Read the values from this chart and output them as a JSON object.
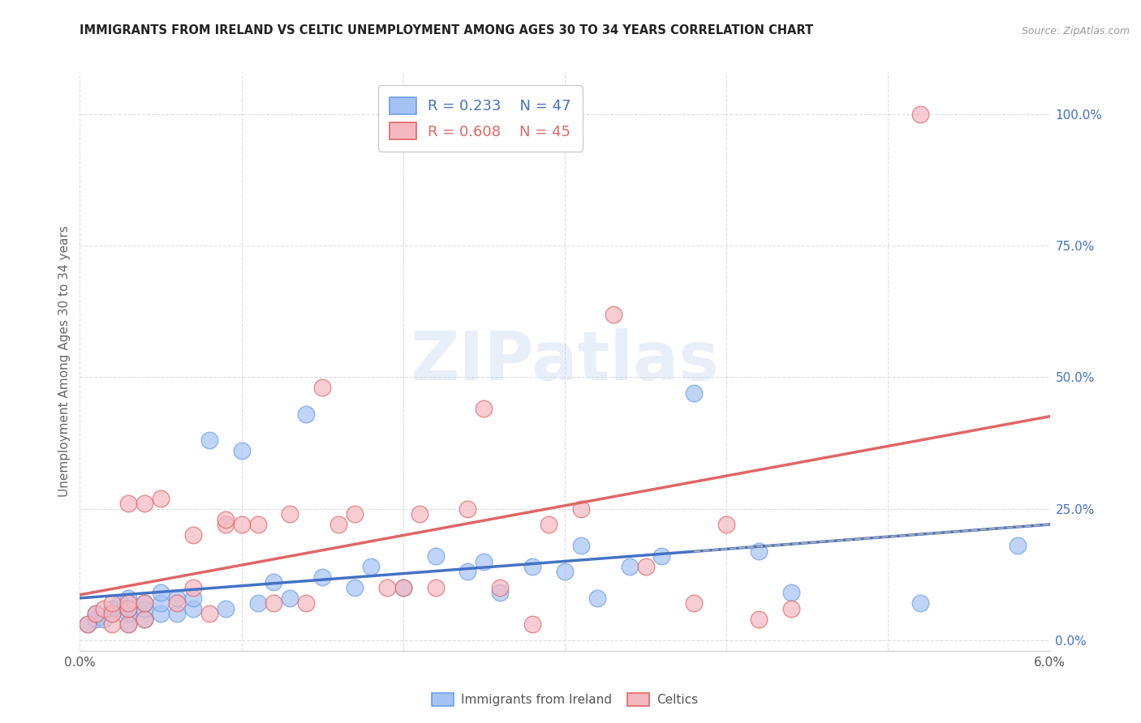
{
  "title": "IMMIGRANTS FROM IRELAND VS CELTIC UNEMPLOYMENT AMONG AGES 30 TO 34 YEARS CORRELATION CHART",
  "source": "Source: ZipAtlas.com",
  "ylabel": "Unemployment Among Ages 30 to 34 years",
  "ylabel_right_ticks": [
    "0.0%",
    "25.0%",
    "50.0%",
    "75.0%",
    "100.0%"
  ],
  "ylabel_right_vals": [
    0.0,
    0.25,
    0.5,
    0.75,
    1.0
  ],
  "x_min": 0.0,
  "x_max": 0.06,
  "y_min": -0.02,
  "y_max": 1.08,
  "ireland_R": 0.233,
  "ireland_N": 47,
  "celtics_R": 0.608,
  "celtics_N": 45,
  "ireland_color": "#a4c2f4",
  "celtics_color": "#f4b8c1",
  "ireland_edge_color": "#6d9eeb",
  "celtics_edge_color": "#e06666",
  "ireland_line_color": "#4472c4",
  "celtics_line_color": "#e06666",
  "grid_color": "#dddddd",
  "watermark": "ZIPatlas",
  "watermark_color": "#c8d8ee",
  "legend_label_ireland": "Immigrants from Ireland",
  "legend_label_celtics": "Celtics",
  "ireland_x": [
    0.0005,
    0.001,
    0.001,
    0.0015,
    0.002,
    0.002,
    0.0025,
    0.003,
    0.003,
    0.003,
    0.003,
    0.004,
    0.004,
    0.004,
    0.005,
    0.005,
    0.005,
    0.006,
    0.006,
    0.007,
    0.007,
    0.008,
    0.009,
    0.01,
    0.011,
    0.012,
    0.013,
    0.014,
    0.015,
    0.017,
    0.018,
    0.02,
    0.022,
    0.024,
    0.025,
    0.026,
    0.028,
    0.03,
    0.031,
    0.032,
    0.034,
    0.036,
    0.038,
    0.042,
    0.044,
    0.052,
    0.058
  ],
  "ireland_y": [
    0.03,
    0.04,
    0.05,
    0.04,
    0.05,
    0.06,
    0.07,
    0.03,
    0.05,
    0.06,
    0.08,
    0.04,
    0.06,
    0.07,
    0.05,
    0.07,
    0.09,
    0.05,
    0.08,
    0.06,
    0.08,
    0.38,
    0.06,
    0.36,
    0.07,
    0.11,
    0.08,
    0.43,
    0.12,
    0.1,
    0.14,
    0.1,
    0.16,
    0.13,
    0.15,
    0.09,
    0.14,
    0.13,
    0.18,
    0.08,
    0.14,
    0.16,
    0.47,
    0.17,
    0.09,
    0.07,
    0.18
  ],
  "celtics_x": [
    0.0005,
    0.001,
    0.0015,
    0.002,
    0.002,
    0.002,
    0.003,
    0.003,
    0.003,
    0.003,
    0.004,
    0.004,
    0.004,
    0.005,
    0.006,
    0.007,
    0.007,
    0.008,
    0.009,
    0.009,
    0.01,
    0.011,
    0.012,
    0.013,
    0.014,
    0.015,
    0.016,
    0.017,
    0.019,
    0.02,
    0.021,
    0.022,
    0.024,
    0.025,
    0.026,
    0.028,
    0.029,
    0.031,
    0.033,
    0.035,
    0.038,
    0.04,
    0.042,
    0.044,
    0.052
  ],
  "celtics_y": [
    0.03,
    0.05,
    0.06,
    0.03,
    0.05,
    0.07,
    0.03,
    0.06,
    0.07,
    0.26,
    0.04,
    0.07,
    0.26,
    0.27,
    0.07,
    0.1,
    0.2,
    0.05,
    0.22,
    0.23,
    0.22,
    0.22,
    0.07,
    0.24,
    0.07,
    0.48,
    0.22,
    0.24,
    0.1,
    0.1,
    0.24,
    0.1,
    0.25,
    0.44,
    0.1,
    0.03,
    0.22,
    0.25,
    0.62,
    0.14,
    0.07,
    0.22,
    0.04,
    0.06,
    1.0
  ]
}
